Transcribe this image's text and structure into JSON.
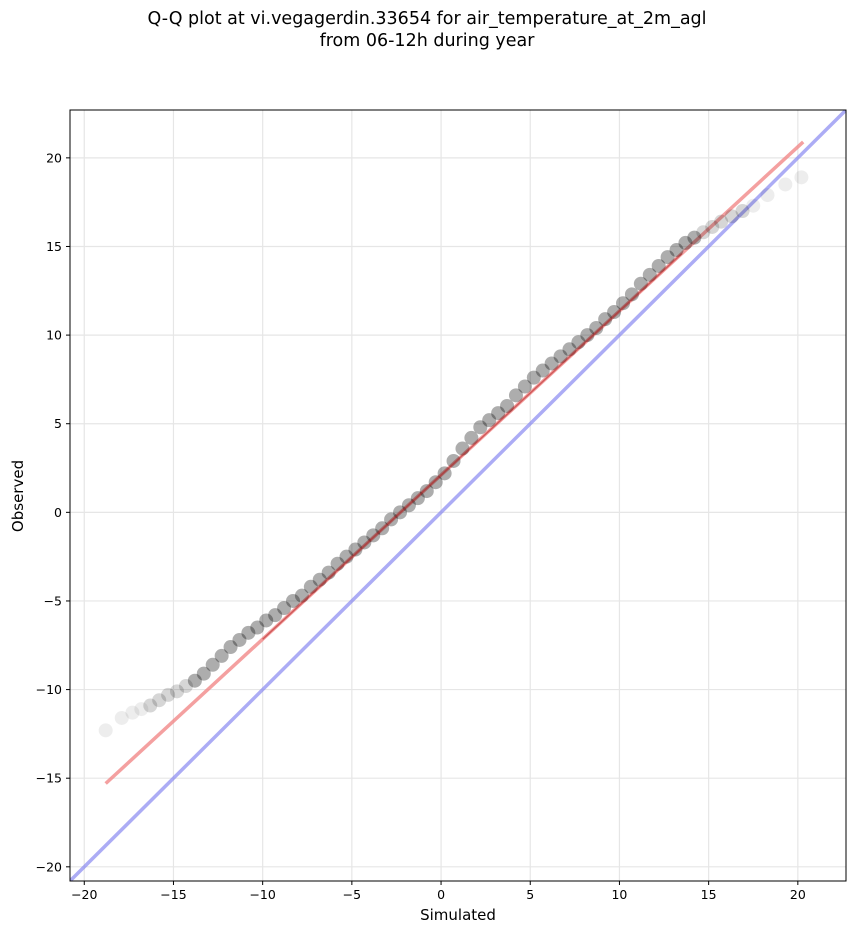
{
  "chart_data": {
    "type": "scatter",
    "title_line1": "Q-Q plot at vi.vegagerdin.33654 for air_temperature_at_2m_agl",
    "title_line2": "from 06-12h during year",
    "xlabel": "Simulated",
    "ylabel": "Observed",
    "xlim": [
      -20.8,
      22.7
    ],
    "ylim": [
      -20.8,
      22.7
    ],
    "xticks": [
      -20,
      -15,
      -10,
      -5,
      0,
      5,
      10,
      15,
      20
    ],
    "yticks": [
      -20,
      -15,
      -10,
      -5,
      0,
      5,
      10,
      15,
      20
    ],
    "xtick_labels": [
      "−20",
      "−15",
      "−10",
      "−5",
      "0",
      "5",
      "10",
      "15",
      "20"
    ],
    "ytick_labels": [
      "−20",
      "−15",
      "−10",
      "−5",
      "0",
      "5",
      "10",
      "15",
      "20"
    ],
    "grid": true,
    "colors": {
      "points": "#000000",
      "fit_line": "#f08080",
      "fit_line_inner": "#b22222",
      "identity_line": "#8080f0",
      "grid": "#e6e6e6"
    },
    "identity_line": {
      "x": [
        -20.8,
        22.7
      ],
      "y": [
        -20.8,
        22.7
      ]
    },
    "fit_line": {
      "x": [
        -18.8,
        20.3
      ],
      "y": [
        -15.3,
        20.9
      ]
    },
    "quantiles": {
      "x": [
        -18.8,
        -17.9,
        -17.3,
        -16.8,
        -16.3,
        -15.8,
        -15.3,
        -14.8,
        -14.3,
        -13.8,
        -13.3,
        -12.8,
        -12.3,
        -11.8,
        -11.3,
        -10.8,
        -10.3,
        -9.8,
        -9.3,
        -8.8,
        -8.3,
        -7.8,
        -7.3,
        -6.8,
        -6.3,
        -5.8,
        -5.3,
        -4.8,
        -4.3,
        -3.8,
        -3.3,
        -2.8,
        -2.3,
        -1.8,
        -1.3,
        -0.8,
        -0.3,
        0.2,
        0.7,
        1.2,
        1.7,
        2.2,
        2.7,
        3.2,
        3.7,
        4.2,
        4.7,
        5.2,
        5.7,
        6.2,
        6.7,
        7.2,
        7.7,
        8.2,
        8.7,
        9.2,
        9.7,
        10.2,
        10.7,
        11.2,
        11.7,
        12.2,
        12.7,
        13.2,
        13.7,
        14.2,
        14.7,
        15.2,
        15.7,
        16.3,
        16.9,
        17.5,
        18.3,
        19.3,
        20.2
      ],
      "y": [
        -12.3,
        -11.6,
        -11.3,
        -11.1,
        -10.9,
        -10.6,
        -10.3,
        -10.1,
        -9.8,
        -9.5,
        -9.1,
        -8.6,
        -8.1,
        -7.6,
        -7.2,
        -6.8,
        -6.5,
        -6.1,
        -5.8,
        -5.4,
        -5.0,
        -4.7,
        -4.2,
        -3.8,
        -3.4,
        -2.9,
        -2.5,
        -2.1,
        -1.7,
        -1.3,
        -0.9,
        -0.4,
        0.0,
        0.4,
        0.8,
        1.2,
        1.7,
        2.2,
        2.9,
        3.6,
        4.2,
        4.8,
        5.2,
        5.6,
        6.0,
        6.6,
        7.1,
        7.6,
        8.0,
        8.4,
        8.8,
        9.2,
        9.6,
        10.0,
        10.4,
        10.9,
        11.3,
        11.8,
        12.3,
        12.9,
        13.4,
        13.9,
        14.4,
        14.8,
        15.2,
        15.5,
        15.8,
        16.1,
        16.4,
        16.7,
        17.0,
        17.3,
        17.9,
        18.5,
        18.9
      ]
    }
  }
}
